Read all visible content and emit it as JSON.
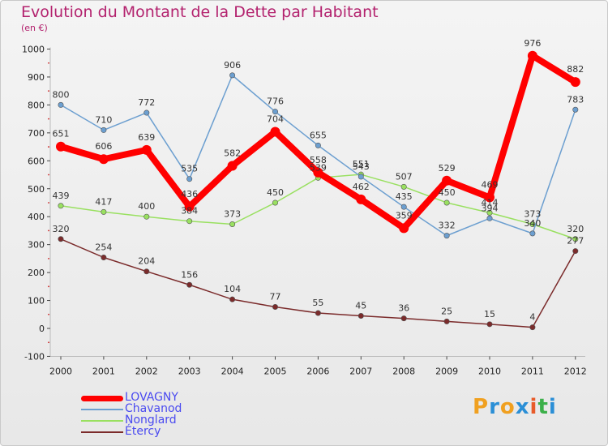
{
  "header": {
    "title": "Evolution du Montant de la Dette par Habitant",
    "subtitle": "(en €)"
  },
  "brand": {
    "letters": [
      "P",
      "r",
      "o",
      "x",
      "i",
      "t",
      "i"
    ],
    "colors": [
      "#f0a020",
      "#2b8fd6",
      "#f0a020",
      "#2b8fd6",
      "#e85b2a",
      "#3cb04a",
      "#2b8fd6"
    ]
  },
  "chart_data": {
    "type": "line",
    "title": "Evolution du Montant de la Dette par Habitant",
    "ylabel": "(en €)",
    "xlabel": "",
    "x": [
      "2000",
      "2001",
      "2002",
      "2003",
      "2004",
      "2005",
      "2006",
      "2007",
      "2008",
      "2009",
      "2010",
      "2011",
      "2012"
    ],
    "ylim": [
      -100,
      1000
    ],
    "yticks": [
      "-100",
      "0",
      "100",
      "200",
      "300",
      "400",
      "500",
      "600",
      "700",
      "800",
      "900",
      "1000"
    ],
    "grid": false,
    "legend_position": "bottom-left",
    "series": [
      {
        "name": "LOVAGNY",
        "color": "#ff0000",
        "values": [
          651,
          606,
          639,
          436,
          582,
          704,
          558,
          462,
          359,
          529,
          469,
          976,
          882
        ],
        "labels": [
          "651",
          "606",
          "639",
          "436",
          "582",
          "704",
          "558",
          "462",
          "359",
          "529",
          "469",
          "976",
          "882"
        ]
      },
      {
        "name": "Chavanod",
        "color": "#6c9fd0",
        "values": [
          800,
          710,
          772,
          535,
          906,
          776,
          655,
          543,
          435,
          332,
          394,
          340,
          783
        ],
        "labels": [
          "800",
          "710",
          "772",
          "535",
          "906",
          "776",
          "655",
          "543",
          "435",
          "332",
          "394",
          "340",
          "783"
        ]
      },
      {
        "name": "Nonglard",
        "color": "#99e060",
        "values": [
          439,
          417,
          400,
          384,
          373,
          450,
          539,
          551,
          507,
          450,
          414,
          373,
          320
        ],
        "labels": [
          "439",
          "417",
          "400",
          "384",
          "373",
          "450",
          "539",
          "551",
          "507",
          "450",
          "414",
          "373",
          "320"
        ]
      },
      {
        "name": "Étercy",
        "color": "#7b2b2b",
        "values": [
          320,
          254,
          204,
          156,
          104,
          77,
          55,
          45,
          36,
          25,
          15,
          4,
          277
        ],
        "labels": [
          "320",
          "254",
          "204",
          "156",
          "104",
          "77",
          "55",
          "45",
          "36",
          "25",
          "15",
          "4",
          "277"
        ]
      }
    ]
  }
}
